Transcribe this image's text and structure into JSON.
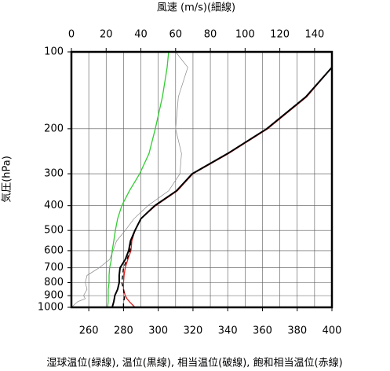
{
  "chart_data": {
    "type": "line",
    "title": "風速 (m/s)(細線)",
    "ylabel": "気圧(hPa)",
    "xlabel": "湿球温位(緑線), 温位(黒線), 相当温位(破線), 飽和相当温位(赤線)",
    "y": [
      1000,
      950,
      925,
      900,
      850,
      800,
      750,
      700,
      650,
      600,
      550,
      500,
      450,
      400,
      350,
      300,
      250,
      200,
      150,
      115,
      100
    ],
    "ylim": [
      1000,
      100
    ],
    "ylog": true,
    "yticks": [
      100,
      200,
      300,
      400,
      500,
      600,
      700,
      800,
      900,
      1000
    ],
    "xlim": [
      250,
      400
    ],
    "xticks": [
      260,
      280,
      300,
      320,
      340,
      360,
      380,
      400
    ],
    "x2lim": [
      0,
      150
    ],
    "x2ticks": [
      0,
      20,
      40,
      60,
      80,
      100,
      120,
      140
    ],
    "grid": true,
    "series": [
      {
        "name": "風速",
        "color": "#888888",
        "axis": "x2",
        "values": [
          0,
          3.6,
          8,
          7,
          9,
          8,
          9,
          16,
          22,
          24,
          26,
          31,
          36,
          44,
          56,
          62.5,
          63.4,
          60,
          61.6,
          67,
          60
        ]
      },
      {
        "name": "湿球温位",
        "color": "#33cc33",
        "values": [
          270.8,
          271.2,
          271.2,
          271.2,
          271.2,
          271.7,
          271.7,
          272,
          273,
          273.5,
          274.4,
          275.3,
          276.6,
          279,
          283.4,
          289.3,
          294.7,
          298.3,
          302.4,
          305.1,
          306
        ]
      },
      {
        "name": "飽和相当温位",
        "color": "#e02020",
        "values": [
          286.6,
          283.4,
          282,
          281,
          280,
          280,
          280.3,
          281,
          282.5,
          284.3,
          284.8,
          286.6,
          290,
          298.5,
          311,
          320,
          340.5,
          363,
          385.5,
          400,
          null
        ]
      },
      {
        "name": "温位",
        "color": "#000000",
        "values": [
          273.5,
          274.4,
          274.7,
          275,
          276.6,
          277.5,
          277.5,
          278,
          281,
          283,
          284,
          286.6,
          290,
          298,
          310.5,
          319.6,
          340,
          362.5,
          385,
          400,
          null
        ]
      },
      {
        "name": "相当温位",
        "color": "#000000",
        "dash": true,
        "values": [
          280,
          280,
          280.5,
          280.5,
          280,
          279,
          279.5,
          280,
          282,
          283.8,
          284.3,
          286.6,
          290,
          298,
          310.5,
          319.6,
          340,
          362.5,
          385,
          400,
          null
        ]
      }
    ]
  }
}
